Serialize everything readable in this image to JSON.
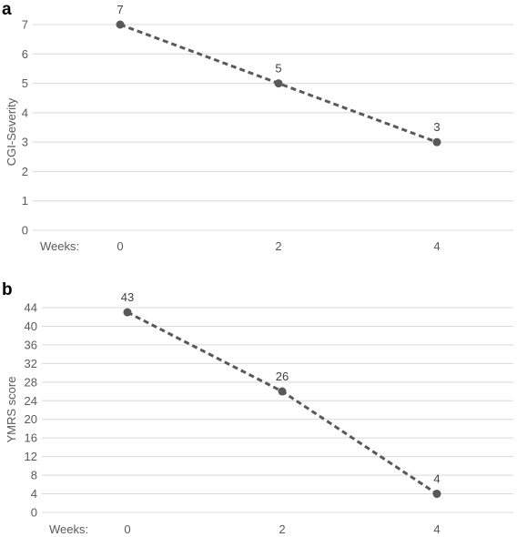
{
  "panels": [
    {
      "letter": "a",
      "category_prefix": "Weeks:",
      "chart_index": 0
    },
    {
      "letter": "b",
      "category_prefix": "Weeks:",
      "chart_index": 1
    }
  ],
  "chart_data": [
    {
      "type": "line",
      "title": "",
      "xlabel": "Weeks:",
      "ylabel": "CGI-Severity",
      "categories": [
        "0",
        "2",
        "4"
      ],
      "values": [
        7,
        5,
        3
      ],
      "data_labels": [
        "7",
        "5",
        "3"
      ],
      "ylim": [
        0,
        7
      ],
      "yticks": [
        0,
        1,
        2,
        3,
        4,
        5,
        6,
        7
      ],
      "grid": true,
      "line_style": "dashed",
      "marker": "circle",
      "color": "#595959"
    },
    {
      "type": "line",
      "title": "",
      "xlabel": "Weeks:",
      "ylabel": "YMRS score",
      "categories": [
        "0",
        "2",
        "4"
      ],
      "values": [
        43,
        26,
        4
      ],
      "data_labels": [
        "43",
        "26",
        "4"
      ],
      "ylim": [
        0,
        44
      ],
      "yticks": [
        0,
        4,
        8,
        12,
        16,
        20,
        24,
        28,
        32,
        36,
        40,
        44
      ],
      "grid": true,
      "line_style": "dashed",
      "marker": "circle",
      "color": "#595959"
    }
  ]
}
